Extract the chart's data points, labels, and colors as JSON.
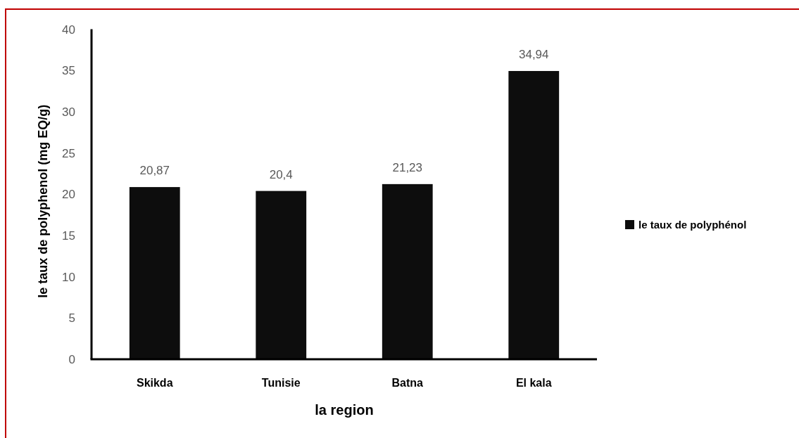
{
  "chart_data": {
    "type": "bar",
    "xlabel": "la region",
    "ylabel": "le taux de polyphenol (mg EQ/g)",
    "categories": [
      "Skikda",
      "Tunisie",
      "Batna",
      "El kala"
    ],
    "series": [
      {
        "name": "le taux de polyphénol",
        "color": "#0d0d0d",
        "values": [
          20.87,
          20.4,
          21.23,
          34.94
        ],
        "value_labels": [
          "20,87",
          "20,4",
          "21,23",
          "34,94"
        ]
      }
    ],
    "ylim": [
      0,
      40
    ],
    "yticks": [
      0,
      5,
      10,
      15,
      20,
      25,
      30,
      35,
      40
    ],
    "legend": "right"
  }
}
